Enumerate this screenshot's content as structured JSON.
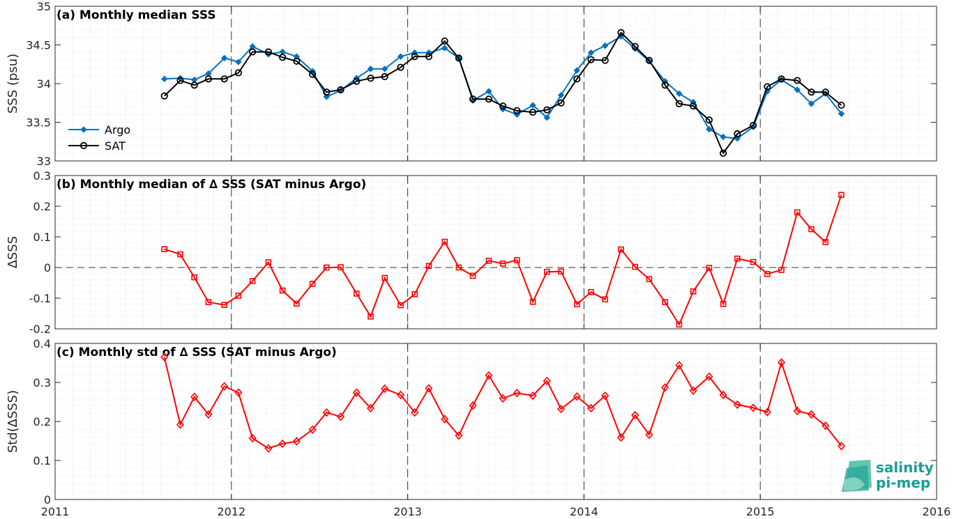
{
  "colors": {
    "argo": "#0072BD",
    "sat": "#000000",
    "delta": "#ff0000",
    "logo": "#1a9e95"
  },
  "logo": {
    "line1": "salinity",
    "line2": "pi-mep"
  },
  "chart_data": [
    {
      "type": "line",
      "title": "(a) Monthly median SSS",
      "xlabel": "",
      "ylabel": "SSS (psu)",
      "xlim": [
        2011,
        2016
      ],
      "ylim": [
        33,
        35
      ],
      "xticks": [
        "2011",
        "2012",
        "2013",
        "2014",
        "2015",
        "2016"
      ],
      "yticks": [
        "33",
        "33.5",
        "34",
        "34.5",
        "35"
      ],
      "legend_position": "left",
      "grid": "minor-dotted",
      "x": [
        2011.62,
        2011.71,
        2011.79,
        2011.87,
        2011.96,
        2012.04,
        2012.12,
        2012.21,
        2012.29,
        2012.37,
        2012.46,
        2012.54,
        2012.62,
        2012.71,
        2012.79,
        2012.87,
        2012.96,
        2013.04,
        2013.12,
        2013.21,
        2013.29,
        2013.37,
        2013.46,
        2013.54,
        2013.62,
        2013.71,
        2013.79,
        2013.87,
        2013.96,
        2014.04,
        2014.12,
        2014.21,
        2014.29,
        2014.37,
        2014.46,
        2014.54,
        2014.62,
        2014.71,
        2014.79,
        2014.87,
        2014.96,
        2015.04,
        2015.12,
        2015.21,
        2015.29,
        2015.37,
        2015.46
      ],
      "series": [
        {
          "name": "Argo",
          "marker": "filled-diamond",
          "values": [
            34.06,
            34.07,
            34.05,
            34.13,
            34.33,
            34.28,
            34.48,
            34.38,
            34.41,
            34.35,
            34.16,
            33.83,
            33.91,
            34.07,
            34.19,
            34.19,
            34.35,
            34.4,
            34.4,
            34.46,
            34.33,
            33.78,
            33.9,
            33.67,
            33.6,
            33.72,
            33.56,
            33.85,
            34.17,
            34.4,
            34.49,
            34.61,
            34.45,
            34.29,
            34.03,
            33.87,
            33.76,
            33.41,
            33.31,
            33.29,
            33.44,
            33.9,
            34.05,
            33.92,
            33.74,
            33.87,
            33.61
          ]
        },
        {
          "name": "SAT",
          "marker": "open-circle",
          "values": [
            33.84,
            34.04,
            33.98,
            34.06,
            34.06,
            34.14,
            34.41,
            34.41,
            34.34,
            34.29,
            34.12,
            33.89,
            33.92,
            34.03,
            34.07,
            34.09,
            34.21,
            34.35,
            34.35,
            34.55,
            34.33,
            33.8,
            33.8,
            33.71,
            33.65,
            33.63,
            33.66,
            33.75,
            34.06,
            34.31,
            34.3,
            34.66,
            34.48,
            34.3,
            33.98,
            33.74,
            33.71,
            33.53,
            33.1,
            33.35,
            33.46,
            33.96,
            34.06,
            34.04,
            33.89,
            33.89,
            33.72
          ]
        }
      ]
    },
    {
      "type": "line",
      "title": "(b) Monthly median of ∆ SSS (SAT minus Argo)",
      "xlabel": "",
      "ylabel": "∆SSS",
      "xlim": [
        2011,
        2016
      ],
      "ylim": [
        -0.2,
        0.3
      ],
      "yticks": [
        "-0.2",
        "-0.1",
        "0",
        "0.1",
        "0.2",
        "0.3"
      ],
      "grid": "minor-dotted",
      "zero_line": "dashed",
      "series": [
        {
          "marker": "open-square",
          "values": [
            0.06,
            0.043,
            -0.032,
            -0.113,
            -0.122,
            -0.092,
            -0.044,
            0.017,
            -0.075,
            -0.118,
            -0.053,
            0.0,
            0.001,
            -0.085,
            -0.16,
            -0.034,
            -0.123,
            -0.087,
            0.005,
            0.084,
            0.0,
            -0.027,
            0.022,
            0.013,
            0.024,
            -0.112,
            -0.014,
            -0.013,
            -0.12,
            -0.08,
            -0.104,
            0.059,
            0.002,
            -0.038,
            -0.113,
            -0.186,
            -0.078,
            -0.001,
            -0.119,
            0.029,
            0.018,
            -0.021,
            -0.008,
            0.18,
            0.125,
            0.083,
            0.237
          ]
        }
      ]
    },
    {
      "type": "line",
      "title": "(c) Monthly std of ∆ SSS (SAT minus Argo)",
      "xlabel": "",
      "ylabel": "Std(∆SSS)",
      "xlim": [
        2011,
        2016
      ],
      "ylim": [
        0,
        0.4
      ],
      "yticks": [
        "0",
        "0.1",
        "0.2",
        "0.3",
        "0.4"
      ],
      "grid": "minor-dotted",
      "series": [
        {
          "marker": "open-diamond",
          "values": [
            0.365,
            0.192,
            0.263,
            0.218,
            0.29,
            0.274,
            0.157,
            0.131,
            0.143,
            0.149,
            0.179,
            0.223,
            0.212,
            0.274,
            0.234,
            0.284,
            0.268,
            0.223,
            0.285,
            0.206,
            0.164,
            0.241,
            0.318,
            0.259,
            0.273,
            0.266,
            0.304,
            0.232,
            0.264,
            0.234,
            0.266,
            0.159,
            0.216,
            0.166,
            0.287,
            0.344,
            0.279,
            0.315,
            0.268,
            0.243,
            0.235,
            0.224,
            0.351,
            0.227,
            0.218,
            0.189,
            0.137
          ]
        }
      ]
    }
  ]
}
